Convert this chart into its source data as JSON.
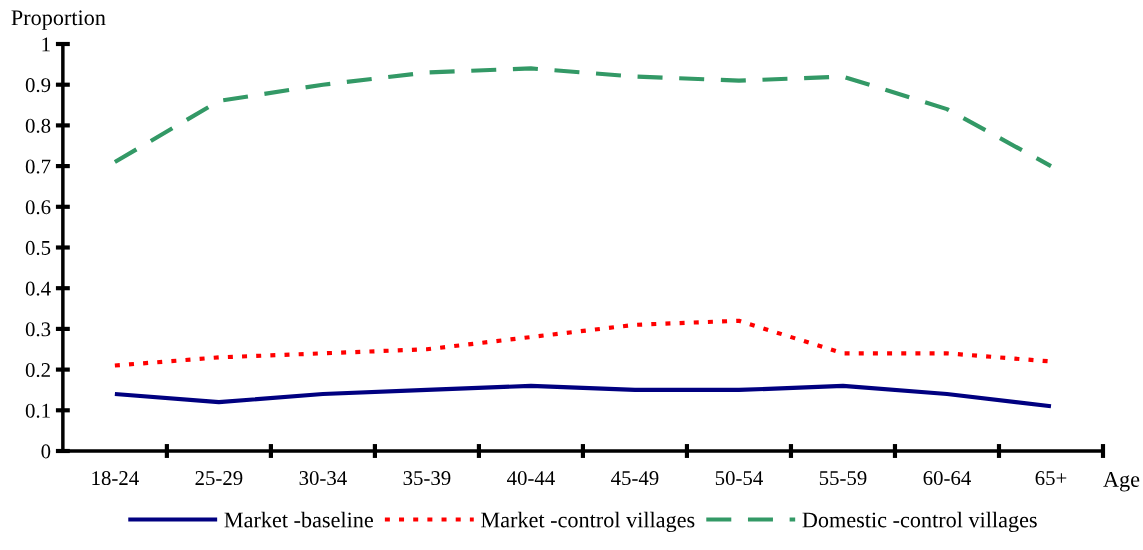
{
  "chart_data": {
    "type": "line",
    "xlabel": "Age",
    "ylabel": "Proportion",
    "categories": [
      "18-24",
      "25-29",
      "30-34",
      "35-39",
      "40-44",
      "45-49",
      "50-54",
      "55-59",
      "60-64",
      "65+"
    ],
    "series": [
      {
        "name": "Market -baseline",
        "color": "#000080",
        "line_style": "solid",
        "values": [
          0.14,
          0.12,
          0.14,
          0.15,
          0.16,
          0.15,
          0.15,
          0.16,
          0.14,
          0.11
        ]
      },
      {
        "name": "Market -control villages",
        "color": "#ff0000",
        "line_style": "dotted",
        "values": [
          0.21,
          0.23,
          0.24,
          0.25,
          0.28,
          0.31,
          0.32,
          0.24,
          0.24,
          0.22
        ]
      },
      {
        "name": "Domestic -control villages",
        "color": "#339966",
        "line_style": "dashed",
        "values": [
          0.71,
          0.86,
          0.9,
          0.93,
          0.94,
          0.92,
          0.91,
          0.92,
          0.84,
          0.7
        ]
      }
    ],
    "ylim": [
      0,
      1
    ],
    "yticks": [
      0,
      0.1,
      0.2,
      0.3,
      0.4,
      0.5,
      0.6,
      0.7,
      0.8,
      0.9,
      1
    ],
    "grid": false,
    "legend": "bottom",
    "marker": "none"
  }
}
